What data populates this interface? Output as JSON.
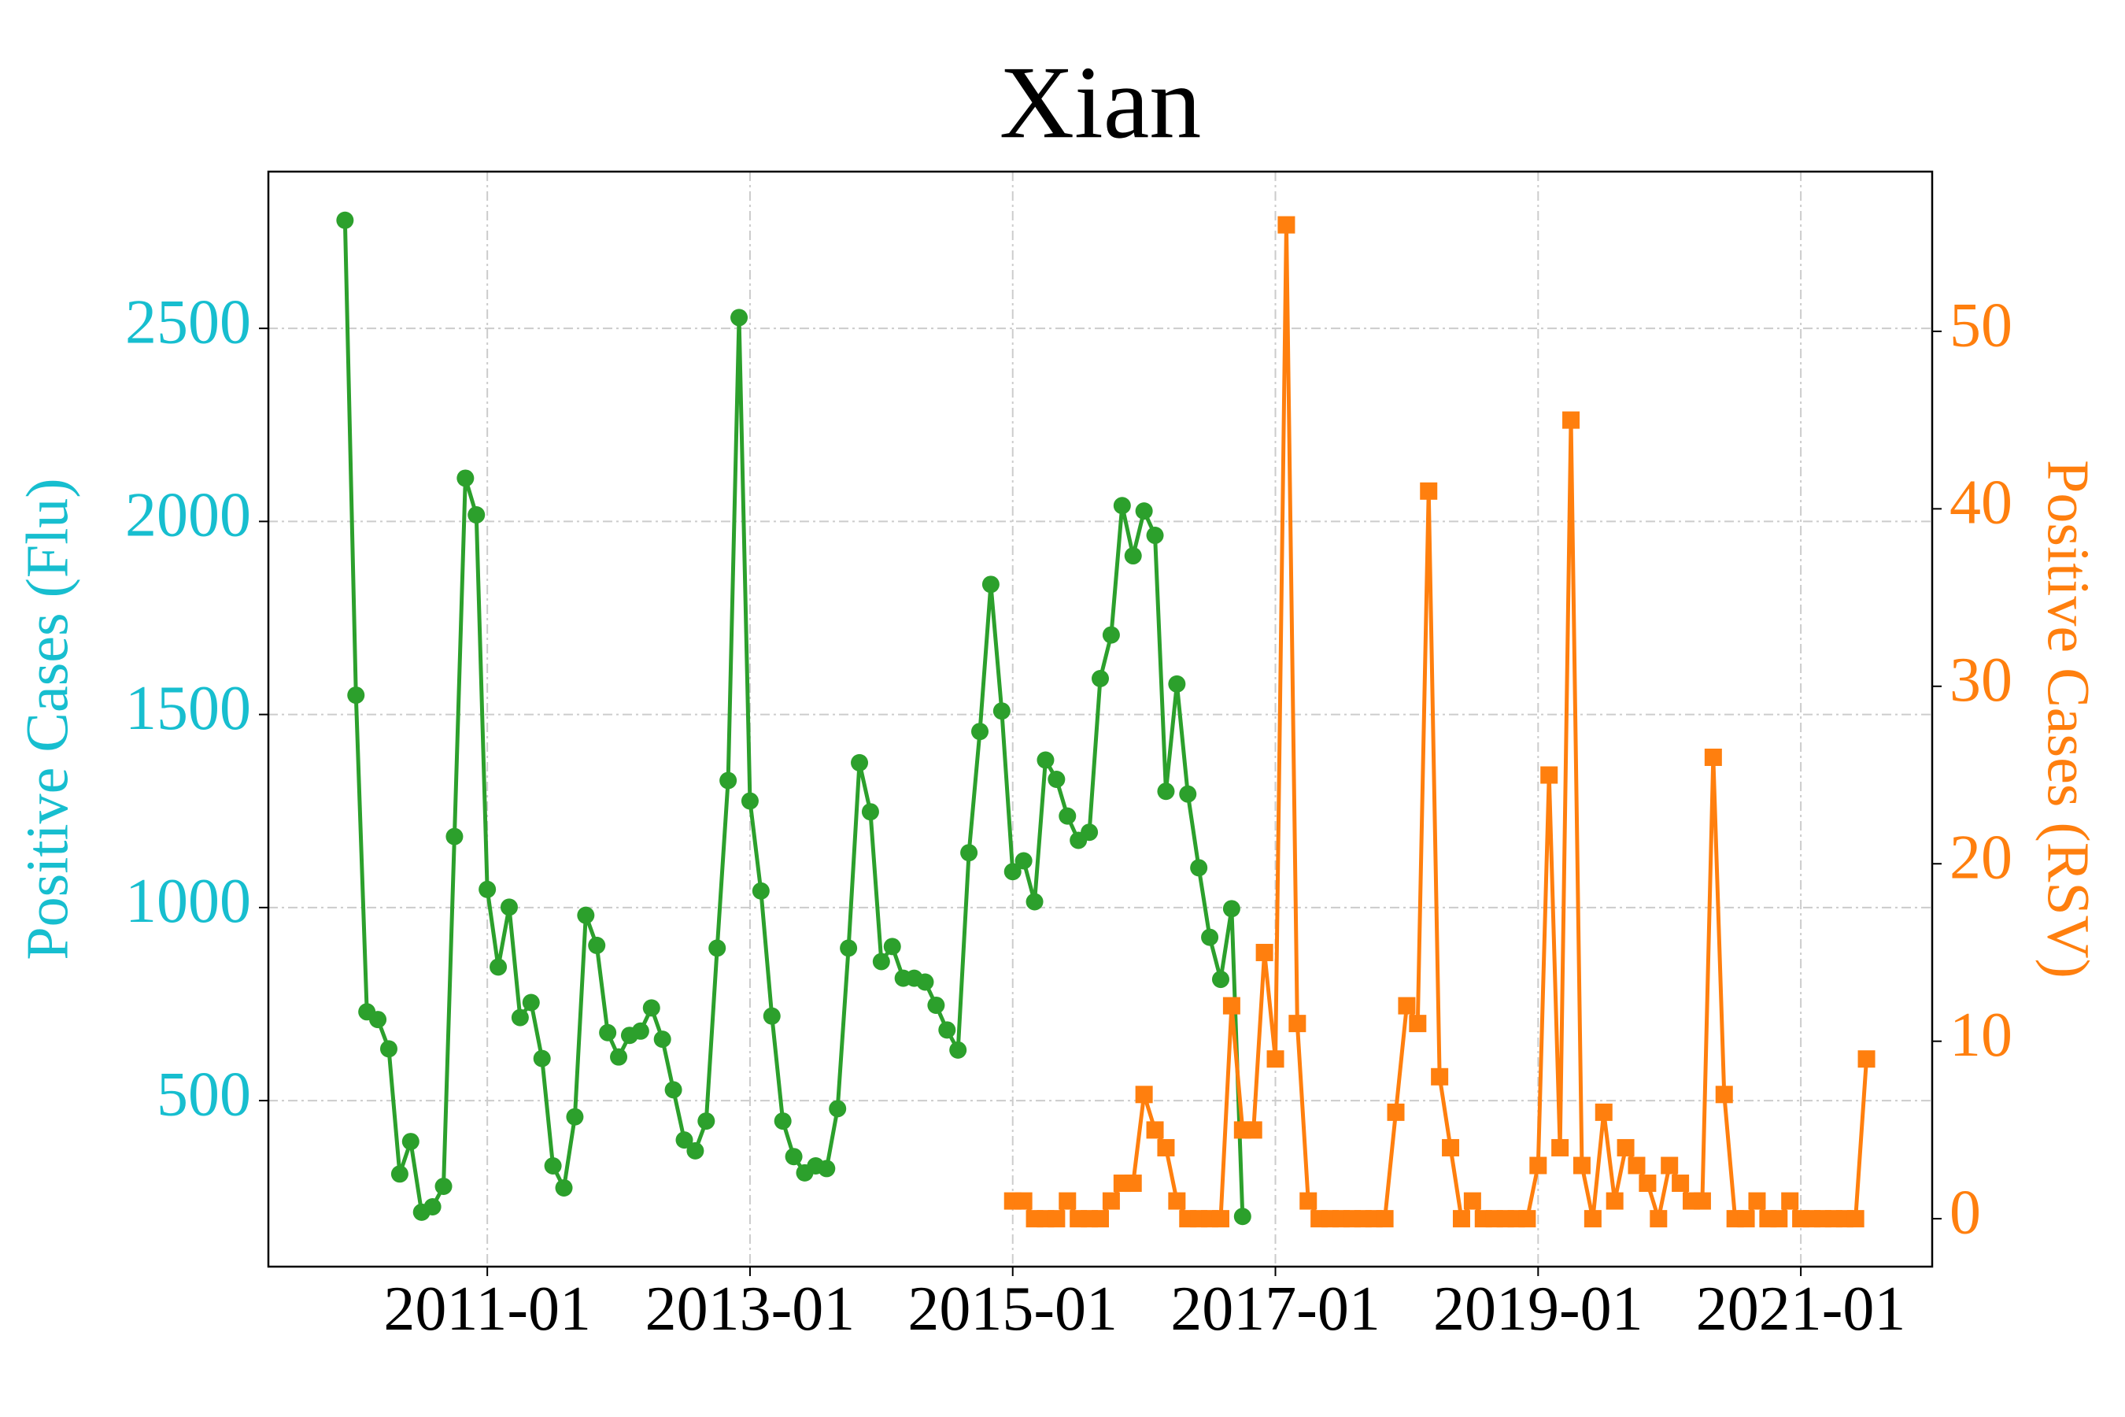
{
  "chart_data": {
    "type": "line",
    "title": "Xian",
    "ylabel": "Positive Cases (Flu)",
    "y2label": "Positive Cases (RSV)",
    "ylabel_color": "#17becf",
    "y2label_color": "#ff7f0e",
    "xlim": [
      "2009-05",
      "2022-01"
    ],
    "xticks": [
      "2011-01",
      "2013-01",
      "2015-01",
      "2017-01",
      "2019-01",
      "2021-01"
    ],
    "ylim": [
      70,
      2906
    ],
    "yticks": [
      500,
      1000,
      1500,
      2000,
      2500
    ],
    "y2lim": [
      -2.7,
      59
    ],
    "y2ticks": [
      0,
      10,
      20,
      30,
      40,
      50
    ],
    "grid": true,
    "series": [
      {
        "color": "#2ca02c",
        "marker": "circle",
        "axis": "y",
        "start": "2009-12",
        "values": [
          2780,
          1550,
          730,
          710,
          634,
          310,
          394,
          211,
          225,
          278,
          1184,
          2112,
          2017,
          1047,
          846,
          1001,
          715,
          754,
          609,
          331,
          274,
          458,
          980,
          902,
          676,
          613,
          669,
          680,
          740,
          659,
          528,
          398,
          370,
          447,
          895,
          1329,
          2528,
          1276,
          1043,
          719,
          447,
          355,
          313,
          331,
          324,
          479,
          895,
          1375,
          1248,
          860,
          899,
          817,
          817,
          807,
          747,
          683,
          631,
          1142,
          1456,
          1837,
          1509,
          1093,
          1121,
          1015,
          1382,
          1332,
          1237,
          1174,
          1195,
          1593,
          1706,
          2041,
          1911,
          2027,
          1964,
          1301,
          1579,
          1294,
          1103,
          923,
          814,
          997,
          200
        ]
      },
      {
        "color": "#ff7f0e",
        "marker": "square",
        "axis": "y2",
        "start": "2015-01",
        "values": [
          1,
          1,
          0,
          0,
          0,
          1,
          0,
          0,
          0,
          1,
          2,
          2,
          7,
          5,
          4,
          1,
          0,
          0,
          0,
          0,
          12,
          5,
          5,
          15,
          9,
          56,
          11,
          1,
          0,
          0,
          0,
          0,
          0,
          0,
          0,
          6,
          12,
          11,
          41,
          8,
          4,
          0,
          1,
          0,
          0,
          0,
          0,
          0,
          3,
          25,
          4,
          45,
          3,
          0,
          6,
          1,
          4,
          3,
          2,
          0,
          3,
          2,
          1,
          1,
          26,
          7,
          0,
          0,
          1,
          0,
          0,
          1,
          0,
          0,
          0,
          0,
          0,
          0,
          9
        ]
      }
    ]
  }
}
